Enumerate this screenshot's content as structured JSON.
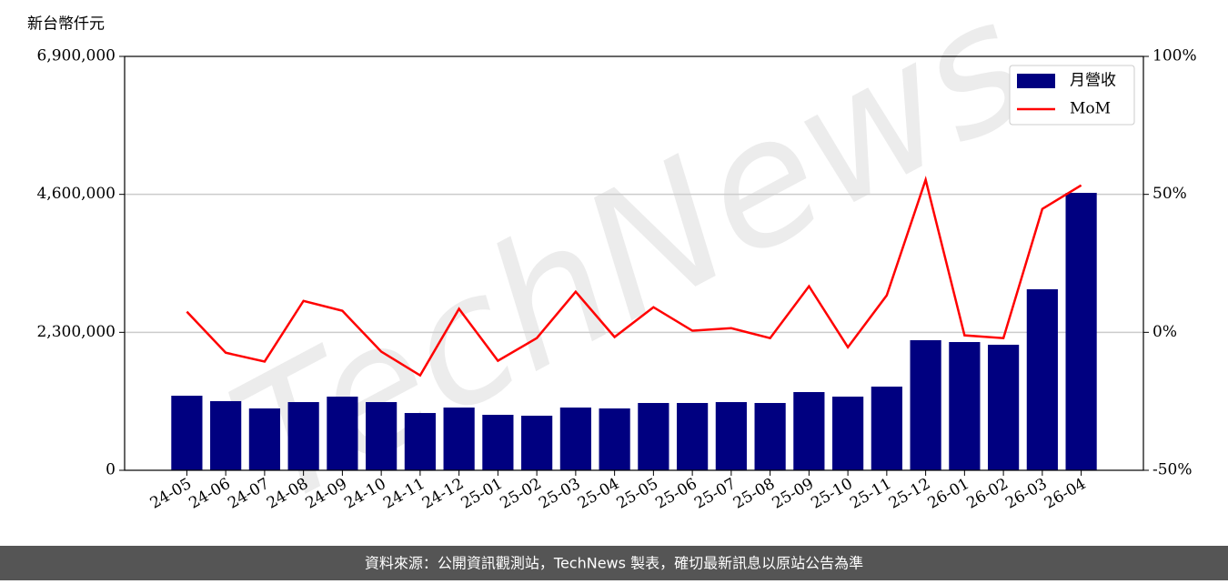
{
  "chart_data": {
    "type": "bar",
    "y_label": "新台幣仟元",
    "watermark": "TechNews",
    "footer": "資料來源：公開資訊觀測站，TechNews 製表，確切最新訊息以原站公告為準",
    "categories": [
      "24-05",
      "24-06",
      "24-07",
      "24-08",
      "24-09",
      "24-10",
      "24-11",
      "24-12",
      "25-01",
      "25-02",
      "25-03",
      "25-04",
      "25-05",
      "25-06",
      "25-07",
      "25-08",
      "25-09",
      "25-10",
      "25-11",
      "25-12",
      "26-01",
      "26-02",
      "26-03",
      "26-04"
    ],
    "series": [
      {
        "name": "月營收",
        "type": "bar",
        "color": "#000080",
        "values": [
          1243000,
          1153000,
          1031000,
          1137000,
          1228000,
          1137000,
          955000,
          1046000,
          925000,
          910000,
          1046000,
          1031000,
          1122000,
          1122000,
          1137000,
          1122000,
          1304000,
          1228000,
          1395000,
          2169000,
          2138000,
          2093000,
          3018000,
          4625000
        ]
      },
      {
        "name": "MoM",
        "type": "line",
        "color": "#ff0000",
        "axis": "y2",
        "values": [
          7.5,
          -7.4,
          -10.6,
          11.4,
          7.8,
          -7,
          -15.6,
          8.5,
          -10.3,
          -2.1,
          14.7,
          -1.7,
          9.1,
          0.6,
          1.5,
          -2.1,
          16.7,
          -5.4,
          13.4,
          55.3,
          -1.1,
          -2.1,
          44.7,
          53.3
        ]
      }
    ],
    "ylim": [
      0,
      6900000
    ],
    "yticks": [
      {
        "value": 0,
        "label": "0"
      },
      {
        "value": 2300000,
        "label": "2,300,000"
      },
      {
        "value": 4600000,
        "label": "4,600,000"
      },
      {
        "value": 6900000,
        "label": "6,900,000"
      }
    ],
    "y2lim": [
      -50,
      100
    ],
    "y2ticks": [
      {
        "value": -50,
        "label": "-50%"
      },
      {
        "value": 0,
        "label": "0%"
      },
      {
        "value": 50,
        "label": "50%"
      },
      {
        "value": 100,
        "label": "100%"
      }
    ],
    "grid": true,
    "legend": "upper right"
  }
}
